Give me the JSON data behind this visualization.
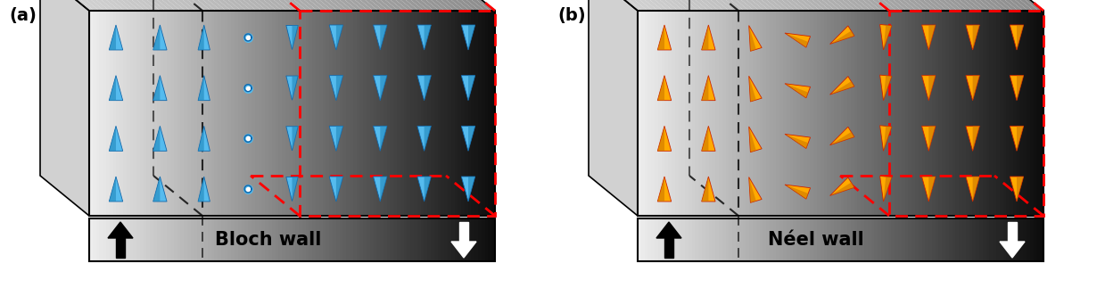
{
  "figsize": [
    12.39,
    3.23
  ],
  "dpi": 100,
  "bg_color": "#ffffff",
  "panel_a": {
    "label": "(a)",
    "title": "Bloch wall",
    "spin_color": "#55bbee",
    "spin_dark": "#1166aa"
  },
  "panel_b": {
    "label": "(b)",
    "title": "Néel wall",
    "spin_color": "#ffaa00",
    "spin_dark": "#cc2200"
  },
  "white": [
    0.93,
    0.93,
    0.93
  ],
  "light_gray": [
    0.82,
    0.82,
    0.82
  ],
  "mid_gray": [
    0.55,
    0.55,
    0.55
  ],
  "dark_gray": [
    0.18,
    0.18,
    0.18
  ],
  "black": [
    0.04,
    0.04,
    0.04
  ]
}
